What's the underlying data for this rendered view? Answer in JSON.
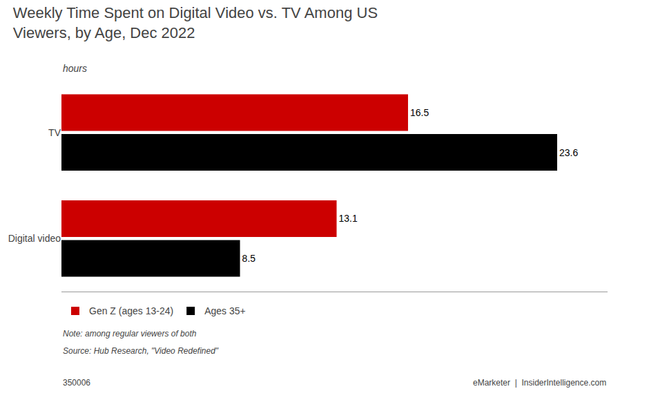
{
  "chart_data": {
    "type": "bar",
    "orientation": "horizontal",
    "title": "Weekly Time Spent on Digital Video vs. TV Among US\nViewers, by Age, Dec 2022",
    "subtitle": "hours",
    "categories": [
      "TV",
      "Digital video"
    ],
    "series": [
      {
        "name": "Gen Z (ages 13-24)",
        "color": "#cc0000",
        "values": [
          16.5,
          13.1
        ]
      },
      {
        "name": "Ages 35+",
        "color": "#000000",
        "values": [
          23.6,
          8.5
        ]
      }
    ],
    "xlim": [
      0,
      26
    ],
    "xticks": [],
    "tick_labels": "y",
    "data_labels": true,
    "grid": false,
    "legend": "bottom",
    "annotations": [
      "Note: among regular viewers of both",
      "Source: Hub Research, \"Video Redefined\"",
      "350006",
      "eMarketer  |  InsiderIntelligence.com"
    ]
  }
}
